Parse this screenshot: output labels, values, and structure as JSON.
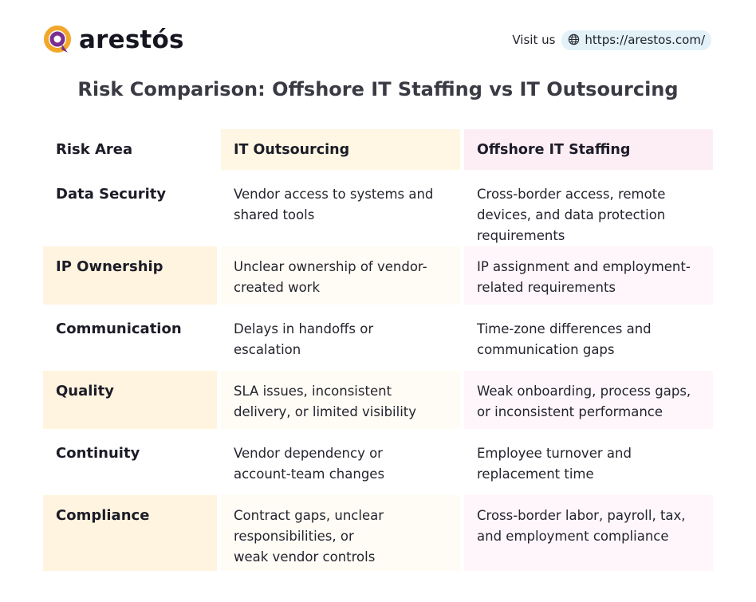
{
  "brand": {
    "name": "arestós",
    "accent": "#f2a72a",
    "ring": "#7a2f8e"
  },
  "header": {
    "visit_label": "Visit us",
    "url": "https://arestos.com/"
  },
  "title": "Risk Comparison: Offshore IT Staffing vs IT Outsourcing",
  "table": {
    "headers": [
      "Risk Area",
      "IT Outsourcing",
      "Offshore IT Staffing"
    ],
    "rows": [
      {
        "area": "Data Security",
        "outsourcing": [
          "Vendor access to systems and",
          "shared tools"
        ],
        "staffing": [
          "Cross-border access, remote",
          "devices, and data protection",
          "requirements"
        ]
      },
      {
        "area": "IP Ownership",
        "outsourcing": [
          "Unclear ownership of vendor-",
          "created work"
        ],
        "staffing": [
          "IP assignment and employment-",
          "related requirements"
        ]
      },
      {
        "area": "Communication",
        "outsourcing": [
          "Delays in handoffs or",
          "escalation"
        ],
        "staffing": [
          "Time-zone differences and",
          "communication gaps"
        ]
      },
      {
        "area": "Quality",
        "outsourcing": [
          "SLA issues, inconsistent",
          "delivery, or limited visibility"
        ],
        "staffing": [
          "Weak onboarding, process gaps,",
          "or inconsistent performance"
        ]
      },
      {
        "area": "Continuity",
        "outsourcing": [
          "Vendor dependency or",
          "account-team changes"
        ],
        "staffing": [
          "Employee turnover and",
          "replacement time"
        ]
      },
      {
        "area": "Compliance",
        "outsourcing": [
          "Contract gaps, unclear",
          "responsibilities, or",
          "weak vendor controls"
        ],
        "staffing": [
          "Cross-border labor, payroll, tax,",
          "and employment compliance"
        ]
      }
    ]
  }
}
